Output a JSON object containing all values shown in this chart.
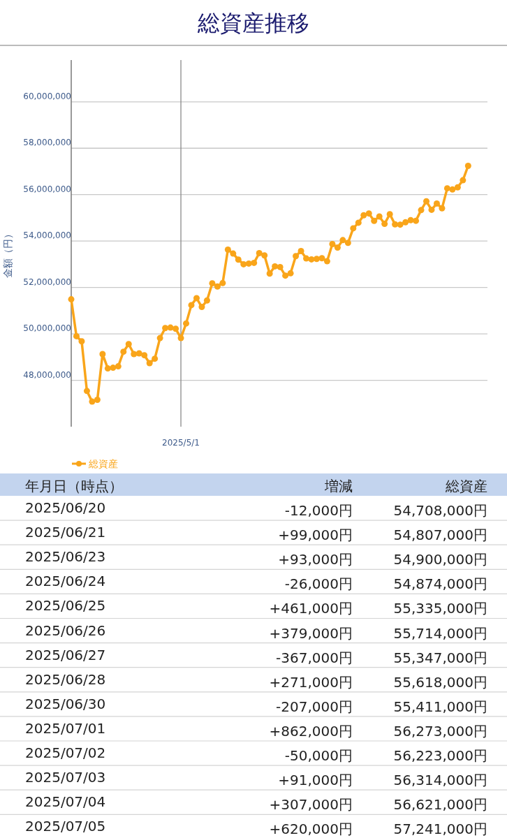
{
  "chart_data": [
    {
      "type": "line",
      "title": "総資産推移",
      "ylabel": "金額（円）",
      "categories": [
        null,
        null,
        null,
        null,
        null,
        null,
        null,
        null,
        null,
        null,
        null,
        null,
        null,
        null,
        null,
        null,
        null,
        null,
        null,
        null,
        null,
        "2025/5/1",
        null,
        null,
        null,
        null,
        null,
        null,
        null,
        null,
        null,
        null,
        null,
        null,
        null,
        null,
        null,
        null,
        null,
        null,
        null,
        null,
        null,
        null,
        null,
        null,
        null,
        null,
        null,
        null,
        null,
        null,
        null,
        null,
        null,
        null,
        null,
        null,
        null,
        null,
        null,
        null,
        null,
        null,
        null,
        null,
        null,
        null,
        null,
        null,
        null,
        null,
        null,
        null,
        null,
        null,
        null
      ],
      "series": [
        {
          "name": "総資産",
          "color": "#f9a51a",
          "values": [
            51490000,
            49900000,
            49680000,
            47540000,
            47080000,
            47160000,
            49130000,
            48510000,
            48540000,
            48600000,
            49230000,
            49560000,
            49130000,
            49160000,
            49080000,
            48740000,
            48930000,
            49820000,
            50250000,
            50270000,
            50220000,
            49820000,
            50450000,
            51240000,
            51540000,
            51160000,
            51440000,
            52180000,
            52040000,
            52190000,
            53630000,
            53460000,
            53200000,
            53000000,
            53030000,
            53060000,
            53480000,
            53380000,
            52600000,
            52910000,
            52880000,
            52510000,
            52610000,
            53350000,
            53570000,
            53250000,
            53210000,
            53230000,
            53260000,
            53130000,
            53870000,
            53720000,
            54040000,
            53920000,
            54550000,
            54790000,
            55110000,
            55190000,
            54870000,
            55060000,
            54740000,
            55160000,
            54720000,
            54708000,
            54807000,
            54900000,
            54874000,
            55335000,
            55714000,
            55347000,
            55618000,
            55411000,
            56273000,
            56223000,
            56314000,
            56621000,
            57241000
          ]
        }
      ],
      "ylim": [
        46000000,
        61800000
      ],
      "yticks": [
        {
          "value": 48000000,
          "label": "48,000,000"
        },
        {
          "value": 50000000,
          "label": "50,000,000"
        },
        {
          "value": 52000000,
          "label": "52,000,000"
        },
        {
          "value": 54000000,
          "label": "54,000,000"
        },
        {
          "value": 56000000,
          "label": "56,000,000"
        },
        {
          "value": 58000000,
          "label": "58,000,000"
        },
        {
          "value": 60000000,
          "label": "60,000,000"
        }
      ],
      "grid": true,
      "legend": "bottom",
      "marker": "circle",
      "line_style": "solid"
    },
    {
      "type": "other",
      "xlabel": "年月日（時点）",
      "categories": [
        "2025/06/20",
        "2025/06/21",
        "2025/06/23",
        "2025/06/24",
        "2025/06/25",
        "2025/06/26",
        "2025/06/27",
        "2025/06/28",
        "2025/06/30",
        "2025/07/01",
        "2025/07/02",
        "2025/07/03",
        "2025/07/04",
        "2025/07/05"
      ],
      "series": [
        {
          "name": "増減",
          "values": [
            -12000,
            99000,
            93000,
            -26000,
            461000,
            379000,
            -367000,
            271000,
            -207000,
            862000,
            -50000,
            91000,
            307000,
            620000
          ],
          "value_labels": [
            "-12,000円",
            "+99,000円",
            "+93,000円",
            "-26,000円",
            "+461,000円",
            "+379,000円",
            "-367,000円",
            "+271,000円",
            "-207,000円",
            "+862,000円",
            "-50,000円",
            "+91,000円",
            "+307,000円",
            "+620,000円"
          ]
        },
        {
          "name": "総資産",
          "values": [
            54708000,
            54807000,
            54900000,
            54874000,
            55335000,
            55714000,
            55347000,
            55618000,
            55411000,
            56273000,
            56223000,
            56314000,
            56621000,
            57241000
          ],
          "value_labels": [
            "54,708,000円",
            "54,807,000円",
            "54,900,000円",
            "54,874,000円",
            "55,335,000円",
            "55,714,000円",
            "55,347,000円",
            "55,618,000円",
            "55,411,000円",
            "56,273,000円",
            "56,223,000円",
            "56,314,000円",
            "56,621,000円",
            "57,241,000円"
          ]
        }
      ]
    }
  ]
}
